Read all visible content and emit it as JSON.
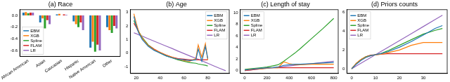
{
  "chart_data": [
    {
      "type": "bar",
      "title": "(a) Race",
      "categories": [
        "African American",
        "Asian",
        "Caucasian",
        "Hispanic",
        "Native American",
        "Other"
      ],
      "series": [
        {
          "name": "EBM",
          "color": "#1f77b4",
          "values": [
            0.05,
            -0.12,
            0.02,
            -0.1,
            -0.55,
            -0.2
          ]
        },
        {
          "name": "XGB",
          "color": "#ff7f0e",
          "values": [
            0.06,
            -0.05,
            0.03,
            -0.15,
            -0.45,
            -0.25
          ]
        },
        {
          "name": "Spline",
          "color": "#2ca02c",
          "values": [
            0.04,
            -0.22,
            0.0,
            -0.2,
            -0.62,
            -0.3
          ]
        },
        {
          "name": "FLAM",
          "color": "#d62728",
          "values": [
            0.05,
            -0.08,
            0.02,
            -0.12,
            -0.5,
            -0.18
          ]
        },
        {
          "name": "LR",
          "color": "#9467bd",
          "values": [
            0.05,
            -0.15,
            0.01,
            -0.25,
            -0.6,
            -0.22
          ]
        }
      ],
      "ylim": [
        -0.7,
        0.1
      ],
      "yticks": [
        {
          "value": -0.6,
          "label": "-0.6"
        },
        {
          "value": -0.4,
          "label": "-0.4"
        },
        {
          "value": -0.2,
          "label": "-0.2"
        },
        {
          "value": 0,
          "label": "0.0"
        }
      ],
      "grid": false,
      "legend": "lower left"
    },
    {
      "type": "line",
      "title": "(b) Age",
      "x": [
        18,
        20,
        22,
        25,
        30,
        35,
        40,
        45,
        50,
        55,
        60,
        65,
        70,
        72,
        75,
        78,
        80,
        85,
        90,
        95
      ],
      "series": [
        {
          "name": "EBM",
          "color": "#1f77b4",
          "values": [
            2.7,
            2.0,
            1.5,
            1.0,
            0.5,
            0.2,
            0.0,
            -0.2,
            -0.35,
            -0.45,
            -0.5,
            -0.55,
            -0.5,
            0.3,
            -0.6,
            0.5,
            -0.4,
            null,
            null,
            null
          ]
        },
        {
          "name": "XGB",
          "color": "#ff7f0e",
          "values": [
            2.9,
            2.2,
            1.6,
            1.1,
            0.55,
            0.25,
            0.05,
            -0.15,
            -0.3,
            -0.45,
            -0.55,
            -0.6,
            -0.4,
            0.6,
            -0.3,
            0.7,
            -0.5,
            null,
            null,
            null
          ]
        },
        {
          "name": "Spline",
          "color": "#2ca02c",
          "values": [
            2.4,
            2.0,
            1.6,
            1.15,
            0.6,
            0.25,
            0.0,
            -0.2,
            -0.35,
            -0.5,
            -0.6,
            -0.7,
            -0.75,
            -0.8,
            -0.85,
            -0.9,
            -0.95,
            null,
            null,
            null
          ]
        },
        {
          "name": "FLAM",
          "color": "#d62728",
          "values": [
            2.2,
            1.9,
            1.55,
            1.1,
            0.6,
            0.3,
            0.05,
            -0.15,
            -0.3,
            -0.4,
            -0.45,
            -0.5,
            -0.5,
            -0.5,
            -0.5,
            -0.5,
            -0.5,
            null,
            null,
            null
          ]
        },
        {
          "name": "LR",
          "color": "#9467bd",
          "values": [
            1.5,
            1.43,
            1.35,
            1.25,
            1.06,
            0.88,
            0.7,
            0.52,
            0.34,
            0.15,
            -0.03,
            -0.21,
            -0.39,
            -0.46,
            -0.57,
            -0.68,
            -0.75,
            -0.94,
            -1.12,
            -1.3
          ]
        }
      ],
      "xlim": [
        15,
        98
      ],
      "xticks": [
        20,
        40,
        60,
        80
      ],
      "ylim": [
        -1.5,
        3.2
      ],
      "yticks": [
        -1,
        0,
        1,
        2,
        3
      ],
      "grid": false,
      "legend": "upper right"
    },
    {
      "type": "line",
      "title": "(c) Length of stay",
      "x": [
        0,
        50,
        100,
        150,
        200,
        250,
        300,
        350,
        400,
        450,
        500,
        600,
        700,
        800
      ],
      "series": [
        {
          "name": "EBM",
          "color": "#1f77b4",
          "values": [
            0.1,
            0.2,
            0.3,
            0.4,
            0.45,
            0.5,
            0.6,
            0.9,
            1.0,
            1.1,
            1.1,
            1.2,
            1.3,
            1.4
          ]
        },
        {
          "name": "XGB",
          "color": "#ff7f0e",
          "values": [
            0.1,
            0.2,
            0.3,
            0.3,
            0.4,
            0.5,
            0.5,
            1.5,
            1.2,
            1.0,
            1.0,
            1.1,
            1.1,
            1.1
          ]
        },
        {
          "name": "Spline",
          "color": "#2ca02c",
          "values": [
            0.2,
            0.3,
            0.4,
            0.5,
            0.6,
            0.8,
            1.0,
            1.6,
            2.3,
            3.0,
            3.8,
            5.5,
            7.2,
            9.0
          ]
        },
        {
          "name": "FLAM",
          "color": "#d62728",
          "values": [
            0.0,
            0.1,
            0.2,
            0.3,
            0.5,
            0.5,
            0.5,
            0.5,
            0.5,
            0.5,
            0.5,
            0.5,
            0.5,
            0.5
          ]
        },
        {
          "name": "LR",
          "color": "#9467bd",
          "values": [
            0.0,
            0.1,
            0.2,
            0.3,
            0.4,
            0.5,
            0.6,
            0.7,
            0.8,
            0.9,
            1.0,
            1.2,
            1.4,
            1.6
          ]
        }
      ],
      "xlim": [
        -40,
        840
      ],
      "xticks": [
        0,
        200,
        400,
        600,
        800
      ],
      "ylim": [
        -0.5,
        10.5
      ],
      "yticks": [
        0,
        2,
        4,
        6,
        8,
        10
      ],
      "grid": false,
      "legend": "upper left"
    },
    {
      "type": "line",
      "title": "(d) Priors counts",
      "x": [
        0,
        2,
        4,
        6,
        8,
        10,
        12,
        15,
        20,
        25,
        30,
        35,
        38
      ],
      "series": [
        {
          "name": "EBM",
          "color": "#1f77b4",
          "values": [
            0,
            0.5,
            0.9,
            1.2,
            1.4,
            1.5,
            1.6,
            1.8,
            2.3,
            2.9,
            3.6,
            4.3,
            4.6
          ]
        },
        {
          "name": "XGB",
          "color": "#ff7f0e",
          "values": [
            0,
            0.6,
            1.0,
            1.25,
            1.4,
            1.5,
            1.55,
            1.7,
            2.0,
            2.5,
            2.8,
            2.8,
            2.8
          ]
        },
        {
          "name": "Spline",
          "color": "#2ca02c",
          "values": [
            0,
            0.6,
            1.0,
            1.3,
            1.4,
            1.5,
            1.6,
            1.9,
            2.5,
            3.1,
            3.7,
            4.1,
            4.3
          ]
        },
        {
          "name": "FLAM",
          "color": "#d62728",
          "values": [
            0,
            0.6,
            1.0,
            1.3,
            1.45,
            1.5,
            1.55,
            1.6,
            1.6,
            1.6,
            1.6,
            1.6,
            1.6
          ]
        },
        {
          "name": "LR",
          "color": "#9467bd",
          "values": [
            0,
            0.3,
            0.6,
            0.9,
            1.2,
            1.5,
            1.8,
            2.25,
            3.0,
            3.75,
            4.5,
            5.25,
            5.7
          ]
        }
      ],
      "xlim": [
        -2,
        40
      ],
      "xticks": [
        0,
        10,
        20,
        30
      ],
      "ylim": [
        -0.5,
        6.3
      ],
      "yticks": [
        0,
        2,
        4,
        6
      ],
      "grid": false,
      "legend": "upper left"
    }
  ]
}
